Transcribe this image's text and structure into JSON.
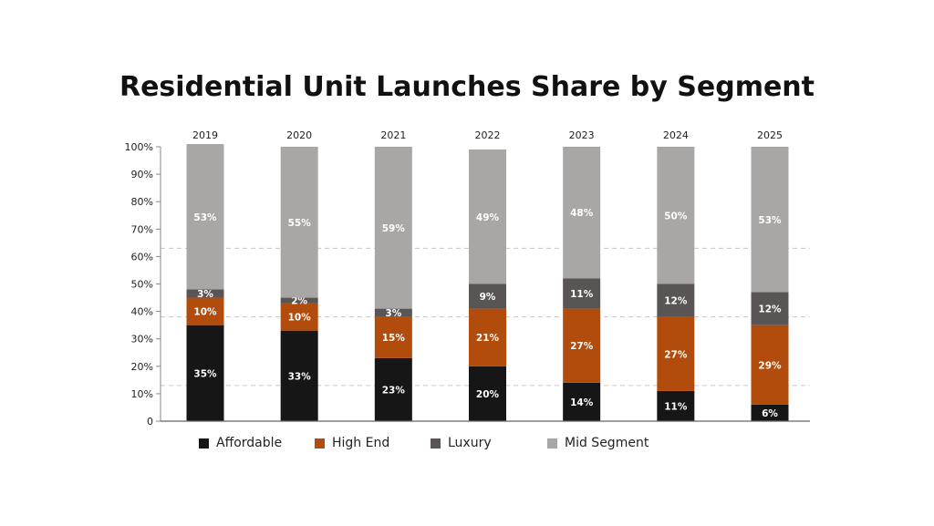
{
  "chart_data": {
    "type": "bar",
    "stacked": true,
    "title": "Residential Unit Launches Share by Segment",
    "categories": [
      "2019",
      "2020",
      "2021",
      "2022",
      "2023",
      "2024",
      "2025"
    ],
    "series": [
      {
        "name": "Affordable",
        "color": "#161616",
        "values": [
          35,
          33,
          23,
          20,
          14,
          11,
          6
        ]
      },
      {
        "name": "High End",
        "color": "#b24c0c",
        "values": [
          10,
          10,
          15,
          21,
          27,
          27,
          29
        ]
      },
      {
        "name": "Luxury",
        "color": "#5a5555",
        "values": [
          3,
          2,
          3,
          9,
          11,
          12,
          12
        ]
      },
      {
        "name": "Mid Segment",
        "color": "#a9a7a6",
        "values": [
          53,
          55,
          59,
          49,
          48,
          50,
          53
        ]
      }
    ],
    "yticks": [
      "0",
      "10%",
      "20%",
      "30%",
      "40%",
      "50%",
      "60%",
      "70%",
      "80%",
      "90%",
      "100%"
    ],
    "ylim": [
      0,
      100
    ],
    "category_axis_position": "top",
    "legend_position": "bottom"
  }
}
